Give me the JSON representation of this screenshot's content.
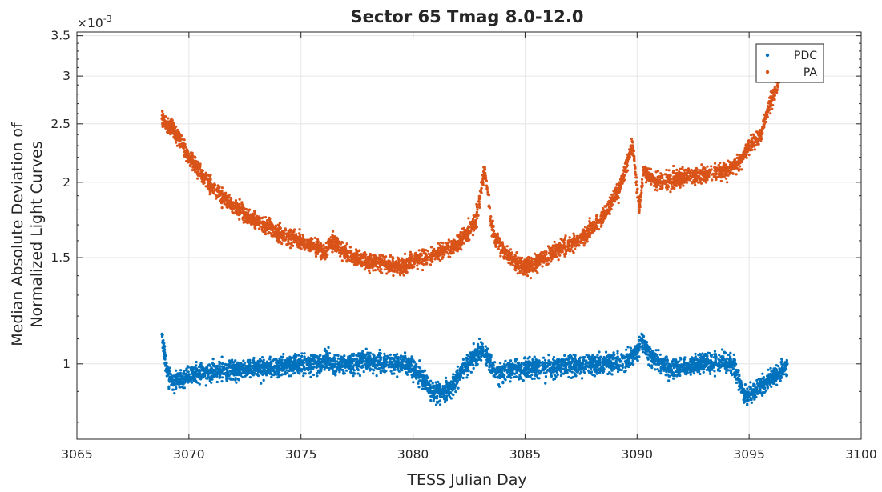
{
  "chart_data": {
    "type": "scatter",
    "title": "Sector 65  Tmag 8.0-12.0",
    "xlabel": "TESS Julian Day",
    "ylabel_lines": [
      "Median Absolute Deviation of",
      "Normalized Light Curves"
    ],
    "y_exponent_label": "×10",
    "y_exponent_power": "-3",
    "y_scale": "log",
    "y_units_multiplier": 0.001,
    "xlim": [
      3065,
      3100
    ],
    "ylim": [
      0.75,
      3.55
    ],
    "xticks": [
      3065,
      3070,
      3075,
      3080,
      3085,
      3090,
      3095,
      3100
    ],
    "xtick_labels": [
      "3065",
      "3070",
      "3075",
      "3080",
      "3085",
      "3090",
      "3095",
      "3100"
    ],
    "yticks": [
      1,
      1.5,
      2,
      2.5,
      3,
      3.5
    ],
    "ytick_labels": [
      "1",
      "1.5",
      "2",
      "2.5",
      "3",
      "3.5"
    ],
    "grid": true,
    "legend_position": "top-right",
    "series": [
      {
        "name": "PDC",
        "color": "#0072BD",
        "x": [
          3068.8,
          3069.0,
          3069.3,
          3069.7,
          3070.2,
          3071.0,
          3072.0,
          3073.0,
          3074.0,
          3075.0,
          3075.8,
          3076.1,
          3076.3,
          3077.0,
          3078.0,
          3079.0,
          3079.8,
          3080.4,
          3080.9,
          3081.5,
          3082.0,
          3082.5,
          3083.0,
          3083.3,
          3083.7,
          3084.5,
          3085.5,
          3086.5,
          3087.5,
          3088.5,
          3089.5,
          3090.0,
          3090.2,
          3090.6,
          3091.5,
          3092.5,
          3093.5,
          3094.3,
          3094.8,
          3095.2,
          3095.6,
          3096.0,
          3096.4,
          3096.7
        ],
        "y": [
          1.12,
          0.98,
          0.93,
          0.95,
          0.96,
          0.97,
          0.98,
          0.985,
          0.99,
          1.0,
          1.0,
          1.03,
          1.0,
          1.0,
          1.01,
          1.0,
          1.0,
          0.95,
          0.9,
          0.9,
          0.95,
          1.0,
          1.05,
          1.03,
          0.97,
          0.98,
          0.985,
          0.99,
          0.995,
          1.0,
          1.01,
          1.05,
          1.1,
          1.03,
          0.98,
          1.0,
          1.01,
          1.0,
          0.88,
          0.9,
          0.92,
          0.95,
          0.97,
          1.0
        ]
      },
      {
        "name": "PA",
        "color": "#D95319",
        "x": [
          3068.8,
          3069.3,
          3070.0,
          3071.0,
          3072.0,
          3073.0,
          3074.0,
          3075.0,
          3075.8,
          3076.1,
          3076.4,
          3077.0,
          3078.0,
          3079.0,
          3079.5,
          3080.0,
          3081.0,
          3082.0,
          3082.8,
          3083.2,
          3083.5,
          3083.7,
          3084.5,
          3085.0,
          3085.5,
          3086.5,
          3087.5,
          3088.5,
          3089.2,
          3089.8,
          3090.1,
          3090.3,
          3090.5,
          3091.0,
          3092.0,
          3093.0,
          3094.0,
          3094.5,
          3095.0,
          3095.5,
          3096.0,
          3096.4,
          3096.7
        ],
        "y": [
          2.55,
          2.45,
          2.2,
          1.97,
          1.82,
          1.72,
          1.65,
          1.6,
          1.55,
          1.52,
          1.6,
          1.52,
          1.48,
          1.46,
          1.45,
          1.48,
          1.52,
          1.58,
          1.72,
          2.1,
          1.7,
          1.6,
          1.48,
          1.45,
          1.47,
          1.55,
          1.62,
          1.75,
          1.95,
          2.3,
          1.8,
          2.1,
          2.05,
          2.0,
          2.03,
          2.06,
          2.1,
          2.15,
          2.3,
          2.4,
          2.75,
          3.0,
          3.2
        ]
      }
    ]
  }
}
